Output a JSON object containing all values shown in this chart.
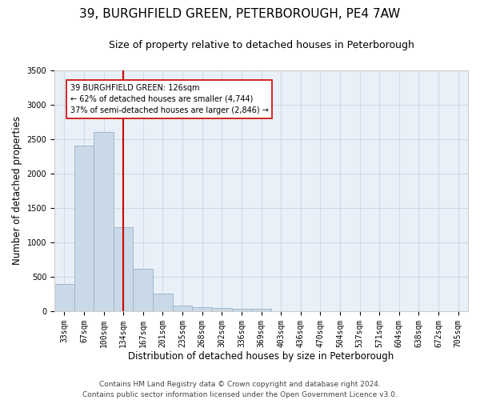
{
  "title": "39, BURGHFIELD GREEN, PETERBOROUGH, PE4 7AW",
  "subtitle": "Size of property relative to detached houses in Peterborough",
  "xlabel": "Distribution of detached houses by size in Peterborough",
  "ylabel": "Number of detached properties",
  "categories": [
    "33sqm",
    "67sqm",
    "100sqm",
    "134sqm",
    "167sqm",
    "201sqm",
    "235sqm",
    "268sqm",
    "302sqm",
    "336sqm",
    "369sqm",
    "403sqm",
    "436sqm",
    "470sqm",
    "504sqm",
    "537sqm",
    "571sqm",
    "604sqm",
    "638sqm",
    "672sqm",
    "705sqm"
  ],
  "values": [
    390,
    2400,
    2600,
    1220,
    620,
    250,
    80,
    55,
    45,
    40,
    35,
    0,
    0,
    0,
    0,
    0,
    0,
    0,
    0,
    0,
    0
  ],
  "bar_color": "#c9d9e8",
  "bar_edge_color": "#a0b8cc",
  "vline_x_index": 3,
  "vline_color": "#cc0000",
  "annotation_text": "39 BURGHFIELD GREEN: 126sqm\n← 62% of detached houses are smaller (4,744)\n37% of semi-detached houses are larger (2,846) →",
  "annotation_box_color": "#ffffff",
  "annotation_box_edge_color": "#cc0000",
  "ylim": [
    0,
    3500
  ],
  "yticks": [
    0,
    500,
    1000,
    1500,
    2000,
    2500,
    3000,
    3500
  ],
  "footer": "Contains HM Land Registry data © Crown copyright and database right 2024.\nContains public sector information licensed under the Open Government Licence v3.0.",
  "bg_color": "#ffffff",
  "plot_bg_color": "#eaf0f8",
  "grid_color": "#d0d8e8",
  "title_fontsize": 11,
  "subtitle_fontsize": 9,
  "axis_label_fontsize": 8.5,
  "tick_fontsize": 7,
  "footer_fontsize": 6.5
}
